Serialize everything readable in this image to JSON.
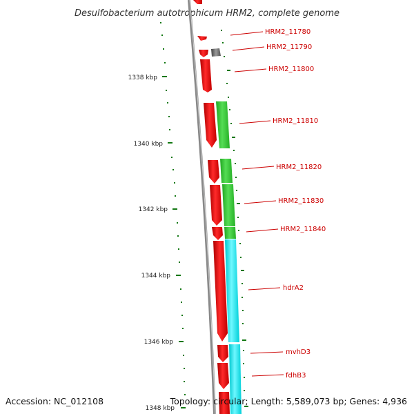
{
  "title": "Desulfobacterium autotrophicum HRM2, complete genome",
  "footer": {
    "accession": "Accession: NC_012108",
    "topology": "Topology: circular; Length: 5,589,073 bp; Genes: 4,936"
  },
  "ticks": [
    "1338 kbp",
    "1340 kbp",
    "1342 kbp",
    "1344 kbp",
    "1346 kbp",
    "1348 kbp"
  ],
  "gene_labels": [
    "HRM2_11780",
    "HRM2_11790",
    "HRM2_11800",
    "HRM2_11810",
    "HRM2_11820",
    "HRM2_11830",
    "HRM2_11840",
    "hdrA2",
    "mvhD3",
    "fdhB3"
  ],
  "colors": {
    "cds": "#ee0000",
    "other": "#666666",
    "cog_green": "#33cc33",
    "cog_cyan": "#00e5ee",
    "backbone": "#888888",
    "tick": "#117711",
    "label": "#cc0000"
  }
}
